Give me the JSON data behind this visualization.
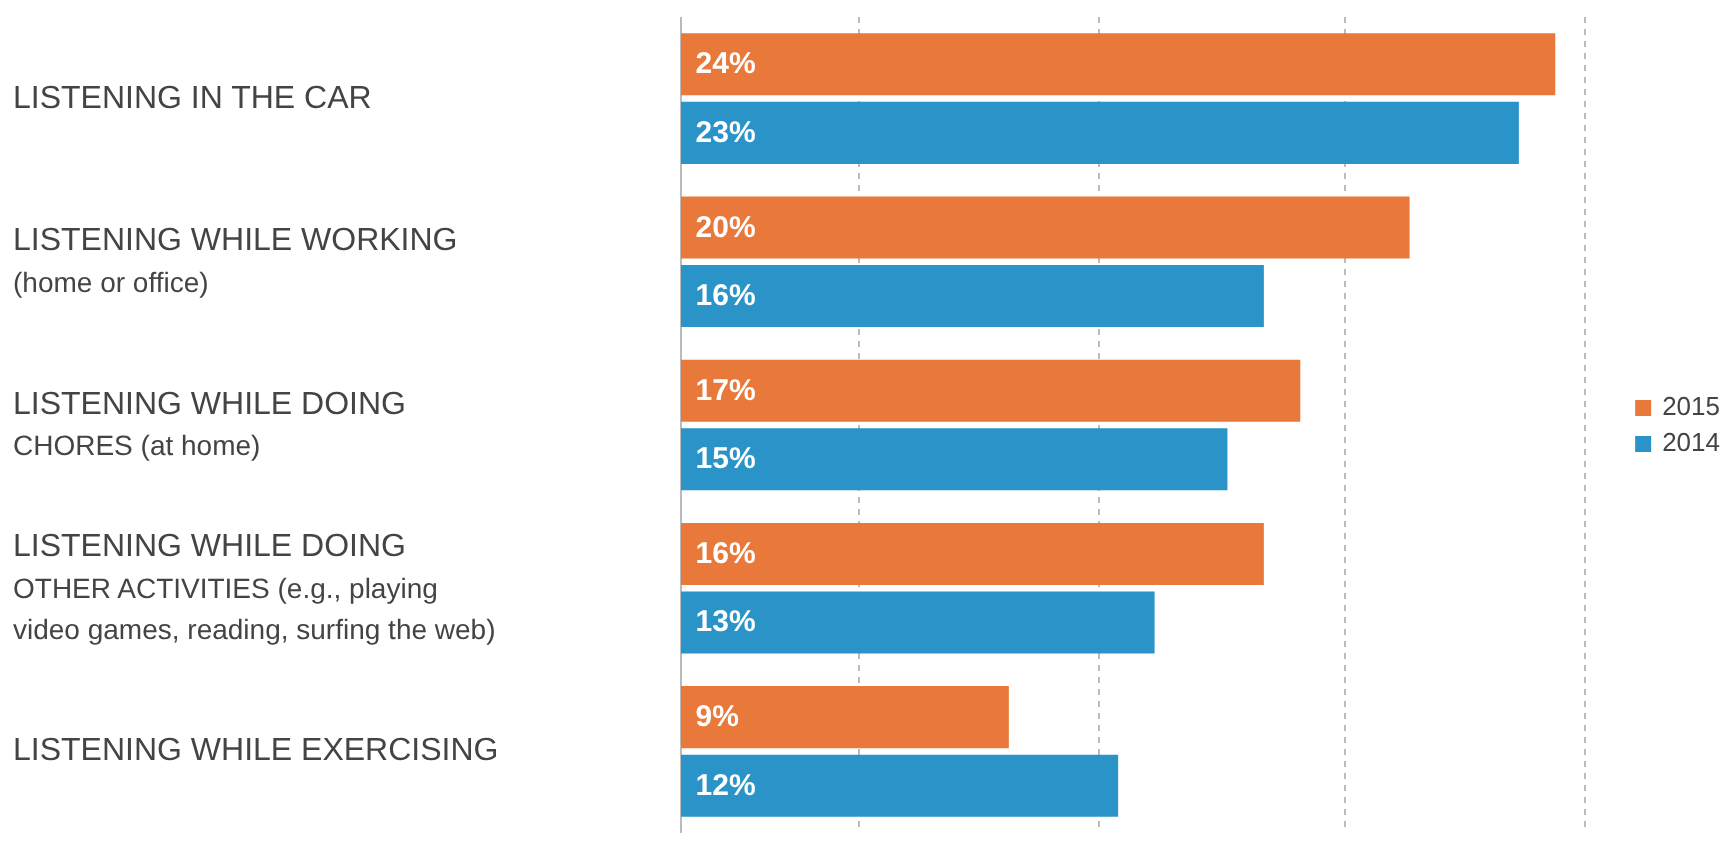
{
  "chart_data": {
    "type": "bar",
    "orientation": "horizontal",
    "categories": [
      "LISTENING IN THE CAR",
      "LISTENING WHILE WORKING\n(home or office)",
      "LISTENING WHILE DOING\nCHORES (at home)",
      "LISTENING WHILE DOING\nOTHER ACTIVITIES (e.g., playing\nvideo games, reading, surfing the web)",
      "LISTENING WHILE EXERCISING"
    ],
    "series": [
      {
        "name": "2015",
        "color": "#e8793a",
        "values": [
          24,
          20,
          17,
          16,
          9
        ],
        "value_labels": [
          "24%",
          "20%",
          "17%",
          "16%",
          "9%"
        ]
      },
      {
        "name": "2014",
        "color": "#2a93c8",
        "values": [
          23,
          16,
          15,
          13,
          12
        ],
        "value_labels": [
          "23%",
          "16%",
          "15%",
          "13%",
          "12%"
        ]
      }
    ],
    "xticks": [
      {
        "value": 4.9,
        "label": null
      },
      {
        "value": 11.5,
        "label": null
      },
      {
        "value": 18.2,
        "label": null
      },
      {
        "value": 24.8,
        "label": null
      }
    ],
    "grid": "x",
    "legend": "right",
    "tick_labels": false
  }
}
